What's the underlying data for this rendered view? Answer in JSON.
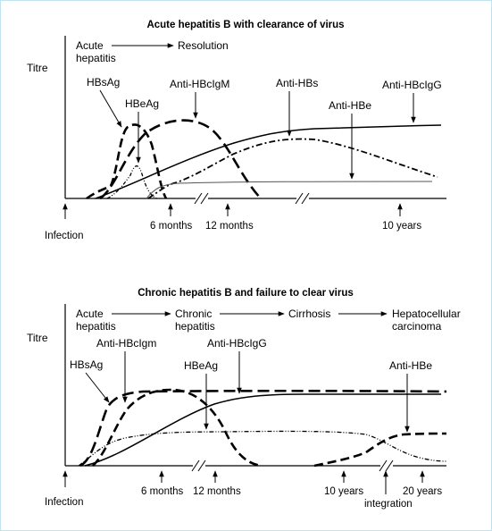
{
  "panel1": {
    "title": "Acute hepatitis B with clearance of virus",
    "ylabel": "Titre",
    "phase_start_line1": "Acute",
    "phase_start_line2": "hepatitis",
    "phase_end": "Resolution",
    "labels": {
      "hbsag": "HBsAg",
      "hbeag": "HBeAg",
      "anti_hbcigm": "Anti-HBcIgM",
      "anti_hbs": "Anti-HBs",
      "anti_hbe": "Anti-HBe",
      "anti_hbcigg": "Anti-HBcIgG"
    },
    "ticks": {
      "infection": "Infection",
      "six_months": "6 months",
      "twelve_months": "12 months",
      "ten_years": "10 years"
    }
  },
  "panel2": {
    "title": "Chronic hepatitis B and failure to clear virus",
    "ylabel": "Titre",
    "phases": {
      "acute_line1": "Acute",
      "acute_line2": "hepatitis",
      "chronic_line1": "Chronic",
      "chronic_line2": "hepatitis",
      "cirrhosis": "Cirrhosis",
      "hcc_line1": "Hepatocellular",
      "hcc_line2": "carcinoma"
    },
    "labels": {
      "hbsag": "HBsAg",
      "anti_hbcigm": "Anti-HBcIgm",
      "anti_hbcigg": "Anti-HBcIgG",
      "hbeag": "HBeAg",
      "anti_hbe": "Anti-HBe"
    },
    "ticks": {
      "infection": "Infection",
      "six_months": "6 months",
      "twelve_months": "12 months",
      "ten_years": "10 years",
      "integration": "integration",
      "twenty_years": "20 years"
    }
  }
}
